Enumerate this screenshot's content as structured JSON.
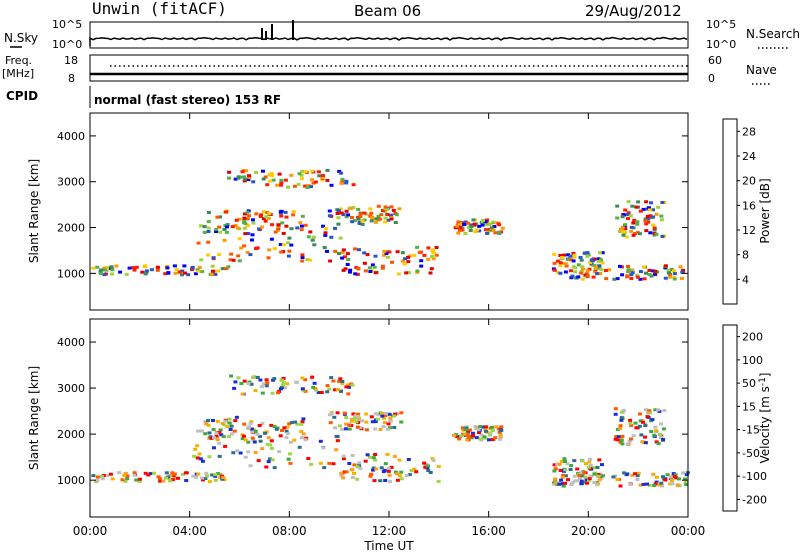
{
  "header": {
    "station": "Unwin (fitACF)",
    "beam": "Beam 06",
    "date": "29/Aug/2012"
  },
  "top_panels": {
    "nsky_label": "N.Sky",
    "nsky_ticks": [
      "10^5",
      "10^0"
    ],
    "nsearch_label": "N.Search",
    "nsearch_ticks": [
      "10^5",
      "10^0"
    ],
    "freq_label": "Freq.",
    "freq_unit": "[MHz]",
    "freq_ticks": [
      "18",
      "8"
    ],
    "nave_label": "Nave",
    "nave_ticks": [
      "60",
      "0"
    ],
    "cpid_label": "CPID",
    "cpid_text": "normal (fast stereo) 153 RF"
  },
  "colors": {
    "power_scale": [
      "#0000ff",
      "#2a55c8",
      "#3a8a5a",
      "#55b04a",
      "#9fd23c",
      "#ffcc00",
      "#ff9900",
      "#ff5500",
      "#ff1a00",
      "#e60000"
    ],
    "velocity_scale": [
      "#ff0000",
      "#ff5a00",
      "#ff9f1a",
      "#f5b300",
      "#bfbfbf",
      "#bfbfbf",
      "#9fd64a",
      "#3fa83f",
      "#2e6e8a",
      "#1a2ed6"
    ]
  },
  "chart_data": [
    {
      "type": "heatmap",
      "title": "",
      "xlabel": "Time UT",
      "ylabel": "Slant Range [km]",
      "x_ticks": [
        "00:00",
        "04:00",
        "08:00",
        "12:00",
        "16:00",
        "20:00",
        "00:00"
      ],
      "xlim": [
        0,
        24
      ],
      "ylim": [
        200,
        4500
      ],
      "y_ticks": [
        "1000",
        "2000",
        "3000",
        "4000"
      ],
      "colorbar_label": "Power [dB]",
      "colorbar_ticks": [
        "4",
        "8",
        "12",
        "16",
        "20",
        "24",
        "28"
      ],
      "clim": [
        0,
        30
      ]
    },
    {
      "type": "heatmap",
      "title": "",
      "xlabel": "Time UT",
      "ylabel": "Slant Range [km]",
      "x_ticks": [
        "00:00",
        "04:00",
        "08:00",
        "12:00",
        "16:00",
        "20:00",
        "00:00"
      ],
      "xlim": [
        0,
        24
      ],
      "ylim": [
        200,
        4500
      ],
      "y_ticks": [
        "1000",
        "2000",
        "3000",
        "4000"
      ],
      "colorbar_label": "Velocity [m s-1]",
      "colorbar_ticks": [
        "200",
        "100",
        "50",
        "15",
        "-15",
        "-50",
        "-100",
        "-200"
      ],
      "clim": [
        -250,
        250
      ]
    }
  ]
}
